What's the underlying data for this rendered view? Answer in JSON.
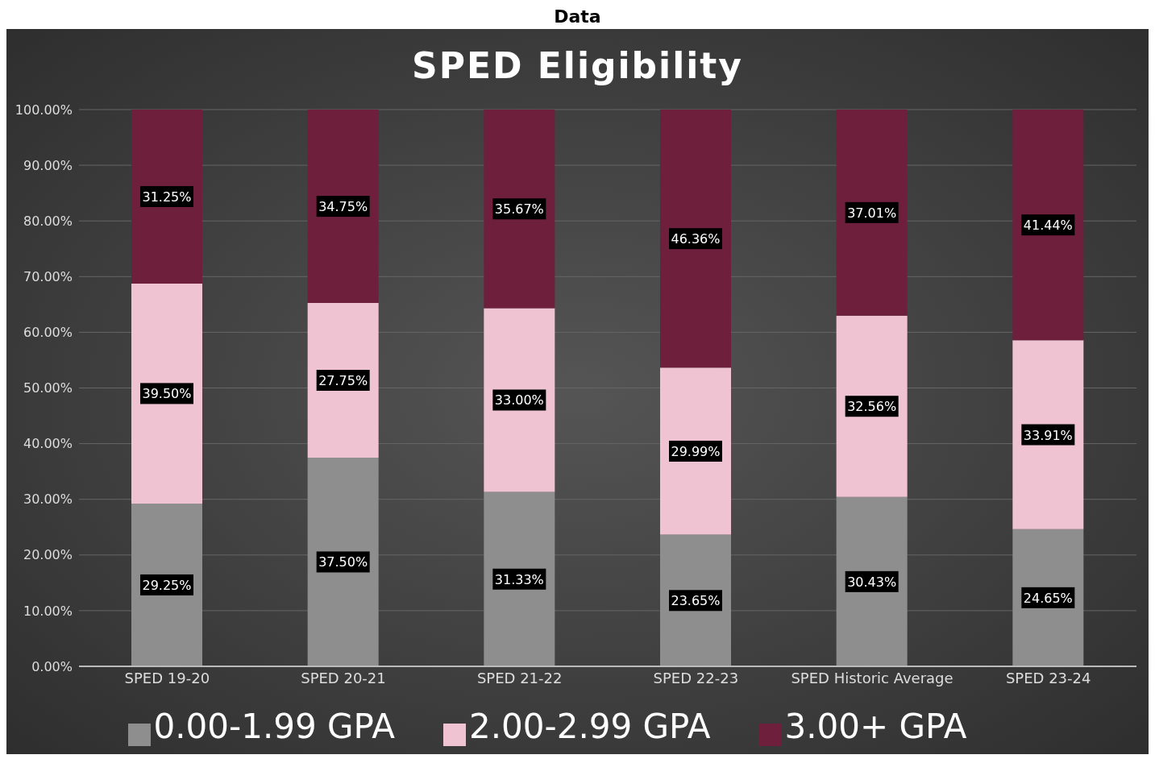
{
  "chart_data": {
    "type": "bar",
    "title": "SPED Eligibility",
    "annotations": [
      "Data"
    ],
    "categories": [
      "SPED 19-20",
      "SPED 20-21",
      "SPED 21-22",
      "SPED 22-23",
      "SPED Historic Average",
      "SPED 23-24"
    ],
    "stacked": true,
    "series": [
      {
        "name": "0.00-1.99 GPA",
        "color": "#8e8e8e",
        "values": [
          29.25,
          37.5,
          31.33,
          23.65,
          30.43,
          24.65
        ],
        "value_labels": [
          "29.25%",
          "37.50%",
          "31.33%",
          "23.65%",
          "30.43%",
          "24.65%"
        ]
      },
      {
        "name": "2.00-2.99 GPA",
        "color": "#efc3d1",
        "values": [
          39.5,
          27.75,
          33.0,
          29.99,
          32.56,
          33.91
        ],
        "value_labels": [
          "39.50%",
          "27.75%",
          "33.00%",
          "29.99%",
          "32.56%",
          "33.91%"
        ]
      },
      {
        "name": "3.00+ GPA",
        "color": "#6e1f3c",
        "values": [
          31.25,
          34.75,
          35.67,
          46.36,
          37.01,
          41.44
        ],
        "value_labels": [
          "31.25%",
          "34.75%",
          "35.67%",
          "46.36%",
          "37.01%",
          "41.44%"
        ]
      }
    ],
    "ylim": [
      0,
      100
    ],
    "yticks": [
      {
        "value": 0,
        "label": "0.00%"
      },
      {
        "value": 10,
        "label": "10.00%"
      },
      {
        "value": 20,
        "label": "20.00%"
      },
      {
        "value": 30,
        "label": "30.00%"
      },
      {
        "value": 40,
        "label": "40.00%"
      },
      {
        "value": 50,
        "label": "50.00%"
      },
      {
        "value": 60,
        "label": "60.00%"
      },
      {
        "value": 70,
        "label": "70.00%"
      },
      {
        "value": 80,
        "label": "80.00%"
      },
      {
        "value": 90,
        "label": "90.00%"
      },
      {
        "value": 100,
        "label": "100.00%"
      }
    ],
    "grid": "y",
    "legend": "bottom"
  }
}
